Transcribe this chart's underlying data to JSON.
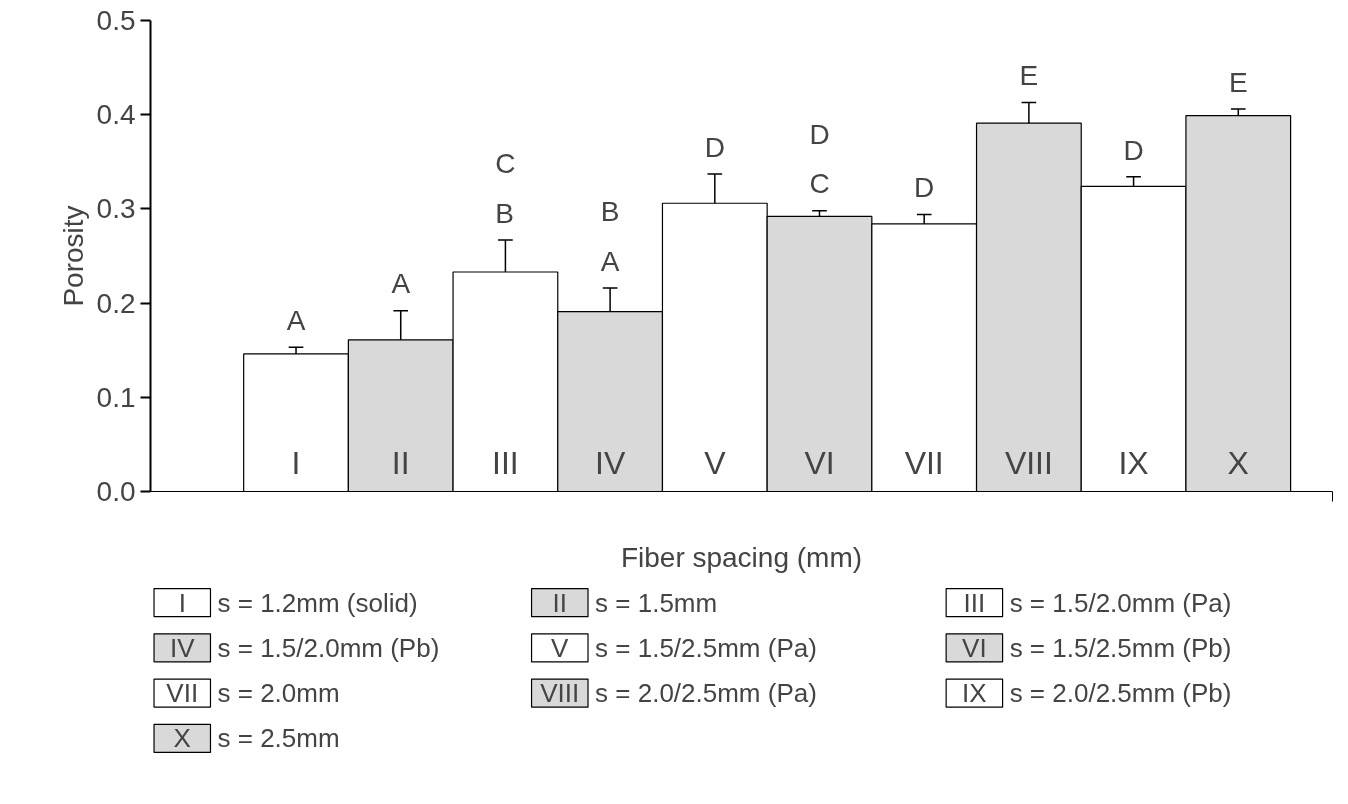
{
  "chart_data": {
    "type": "bar",
    "xlabel": "Fiber spacing (mm)",
    "ylabel": "Porosity",
    "categories": [
      "I",
      "II",
      "III",
      "IV",
      "V",
      "VI",
      "VII",
      "VIII",
      "IX",
      "X"
    ],
    "series": [
      {
        "name": "s = 1.2mm (solid)",
        "color": "#ffffff",
        "values": [
          0.146,
          null,
          null,
          null,
          null,
          null,
          null,
          null,
          null,
          null
        ],
        "errors": [
          [
            0.146,
            0.153
          ],
          null,
          null,
          null,
          null,
          null,
          null,
          null,
          null,
          null
        ]
      },
      {
        "name": "s = 1.5mm",
        "color": "#d9d9d9",
        "values": [
          null,
          0.161,
          null,
          null,
          null,
          null,
          null,
          null,
          null,
          null
        ],
        "errors": [
          null,
          [
            0.161,
            0.192
          ],
          null,
          null,
          null,
          null,
          null,
          null,
          null,
          null
        ]
      },
      {
        "name": "s = 1.5/2.0mm (Pa)",
        "color": "#ffffff",
        "values": [
          null,
          null,
          0.233,
          null,
          null,
          null,
          null,
          null,
          null,
          null
        ],
        "errors": [
          null,
          null,
          [
            0.233,
            0.267
          ],
          null,
          null,
          null,
          null,
          null,
          null,
          null
        ]
      },
      {
        "name": "s = 1.5/2.0mm (Pb)",
        "color": "#d9d9d9",
        "values": [
          null,
          null,
          null,
          0.191,
          null,
          null,
          null,
          null,
          null,
          null
        ],
        "errors": [
          null,
          null,
          null,
          [
            0.191,
            0.216
          ],
          null,
          null,
          null,
          null,
          null,
          null
        ]
      },
      {
        "name": "s = 1.5/2.5mm (Pa)",
        "color": "#ffffff",
        "values": [
          null,
          null,
          null,
          null,
          0.306,
          null,
          null,
          null,
          null,
          null
        ],
        "errors": [
          null,
          null,
          null,
          null,
          [
            0.306,
            0.337
          ],
          null,
          null,
          null,
          null,
          null
        ]
      },
      {
        "name": "s = 1.5/2.5mm (Pb)",
        "color": "#d9d9d9",
        "values": [
          null,
          null,
          null,
          null,
          null,
          0.292,
          null,
          null,
          null,
          null
        ],
        "errors": [
          null,
          null,
          null,
          null,
          null,
          [
            0.292,
            0.298
          ],
          null,
          null,
          null,
          null
        ]
      },
      {
        "name": "s = 2.0mm",
        "color": "#ffffff",
        "values": [
          null,
          null,
          null,
          null,
          null,
          null,
          0.284,
          null,
          null,
          null
        ],
        "errors": [
          null,
          null,
          null,
          null,
          null,
          null,
          [
            0.284,
            0.294
          ],
          null,
          null,
          null
        ]
      },
      {
        "name": "s = 2.0/2.5mm (Pa)",
        "color": "#d9d9d9",
        "values": [
          null,
          null,
          null,
          null,
          null,
          null,
          null,
          0.391,
          null,
          null
        ],
        "errors": [
          null,
          null,
          null,
          null,
          null,
          null,
          null,
          [
            0.391,
            0.413
          ],
          null,
          null
        ]
      },
      {
        "name": "s = 2.0/2.5mm (Pb)",
        "color": "#ffffff",
        "values": [
          null,
          null,
          null,
          null,
          null,
          null,
          null,
          null,
          0.324,
          null
        ],
        "errors": [
          null,
          null,
          null,
          null,
          null,
          null,
          null,
          null,
          [
            0.324,
            0.334
          ],
          null
        ]
      },
      {
        "name": "s = 2.5mm",
        "color": "#d9d9d9",
        "values": [
          null,
          null,
          null,
          null,
          null,
          null,
          null,
          null,
          null,
          0.399
        ],
        "errors": [
          null,
          null,
          null,
          null,
          null,
          null,
          null,
          null,
          null,
          [
            0.399,
            0.406
          ]
        ]
      }
    ],
    "ylim": [
      0,
      0.5
    ],
    "yticks": [
      {
        "value": 0,
        "label": "0.0"
      },
      0.1,
      0.2,
      0.3,
      0.4,
      0.5
    ],
    "grid": false,
    "legend": "bottom",
    "value_labels": [
      "A",
      "A",
      "C\nB",
      "B\nA",
      "D",
      "D\nC",
      "D",
      "E",
      "D",
      "E"
    ]
  }
}
